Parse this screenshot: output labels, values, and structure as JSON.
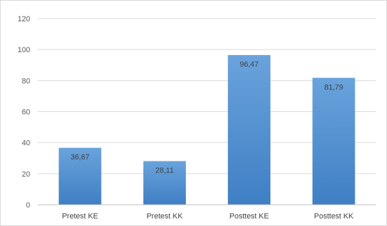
{
  "chart_data": {
    "type": "bar",
    "title": "",
    "xlabel": "",
    "ylabel": "",
    "categories": [
      "Pretest KE",
      "Pretest KK",
      "Posttest KE",
      "Posttest KK"
    ],
    "values": [
      36.67,
      28.11,
      96.47,
      81.79
    ],
    "data_labels": [
      "36,67",
      "28,11",
      "96,47",
      "81,79"
    ],
    "ylim": [
      0,
      120
    ],
    "yticks": [
      0,
      20,
      40,
      60,
      80,
      100,
      120
    ],
    "ytick_labels": [
      "0",
      "20",
      "40",
      "60",
      "80",
      "100",
      "120"
    ],
    "grid": true,
    "legend": "none",
    "bar_color_top": "#6aa3dc",
    "bar_color_bottom": "#3f7fc4"
  }
}
